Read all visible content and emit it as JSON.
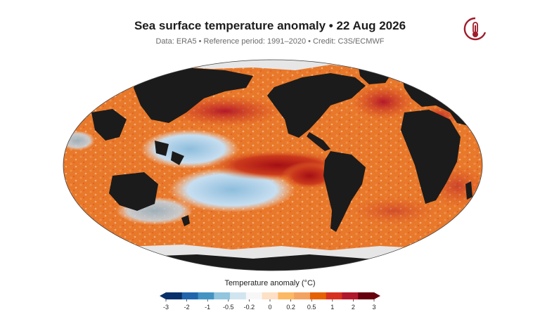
{
  "title": "Sea surface temperature anomaly • 22 Aug 2026",
  "subtitle": "Data: ERA5 • Reference period: 1991–2020 • Credit: C3S/ECMWF",
  "colorbar": {
    "title": "Temperature anomaly (°C)",
    "ticks": [
      "-3",
      "-2",
      "-1",
      "-0.5",
      "-0.2",
      "0",
      "0.2",
      "0.5",
      "1",
      "2",
      "3"
    ],
    "colors": [
      "#08306b",
      "#2166ac",
      "#4393c3",
      "#92c5de",
      "#d1e5f0",
      "#f7f7f7",
      "#fde0c5",
      "#fdb863",
      "#f4a261",
      "#e66101",
      "#d7301f",
      "#b2182b",
      "#67000d"
    ]
  },
  "colors": {
    "land": "#1b1b1b",
    "ice": "#e6e6e6",
    "ocean_warm": "#e8782a",
    "ocean_hot": "#c0281e",
    "ocean_cool": "#9cc7e4",
    "logo": "#a01c2c"
  },
  "icons": {
    "logo": "thermometer-logo-icon"
  }
}
